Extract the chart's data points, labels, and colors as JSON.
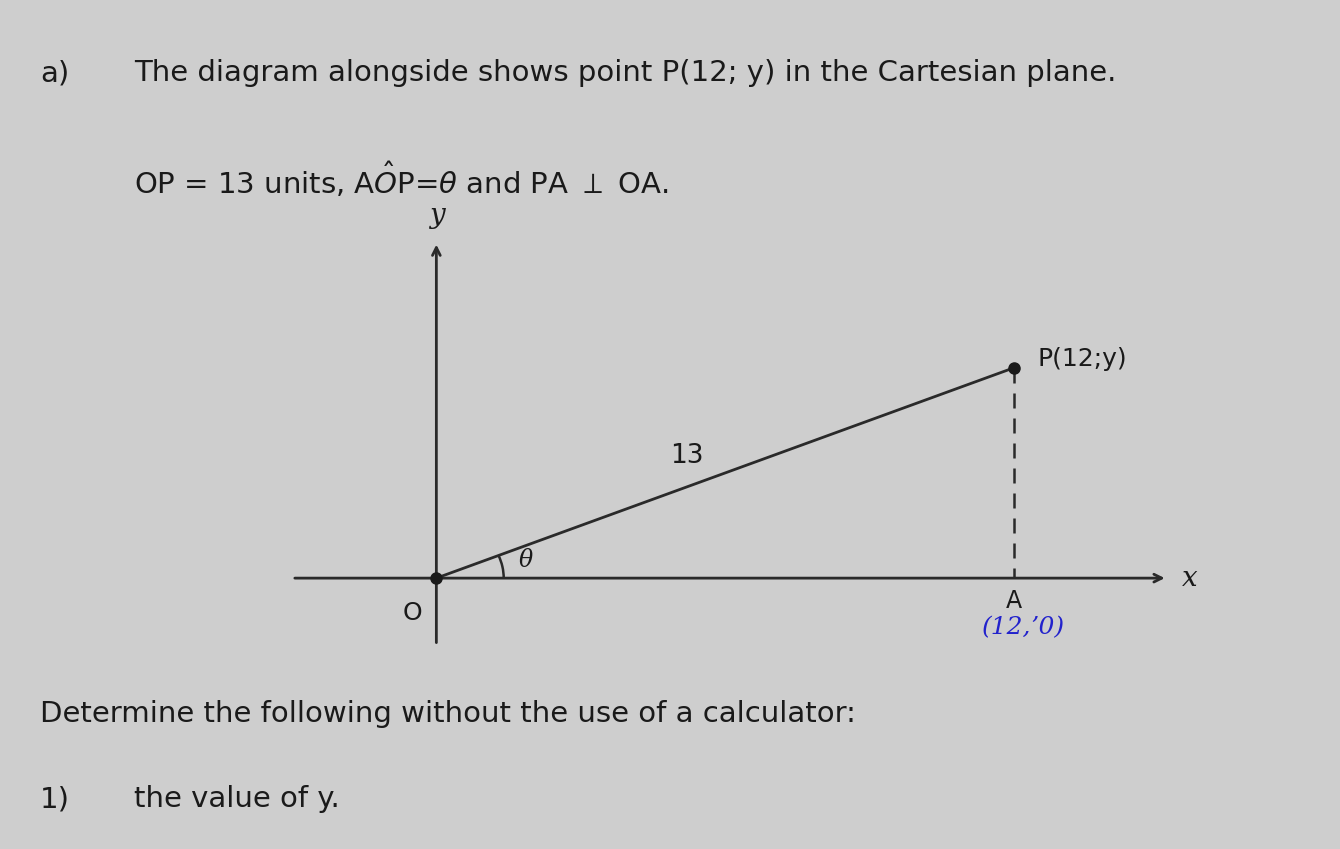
{
  "background_color": "#cecece",
  "title_a": "a)",
  "title_text": "The diagram alongside shows point P(12; y) in the Cartesian plane.",
  "subtitle_text": "OP = 13 units, A$\\hat{O}$P=$\\theta$ and PA $\\perp$ OA.",
  "determine_text": "Determine the following without the use of a calculator:",
  "item1_text": "1)",
  "item1_val": "the value of y.",
  "point_O": [
    0,
    0
  ],
  "point_P": [
    12,
    5
  ],
  "point_A": [
    12,
    0
  ],
  "label_P": "P(12;y)",
  "label_A": "A",
  "label_A2": "(12,ʼ0)",
  "label_O": "O",
  "label_x": "x",
  "label_y": "y",
  "label_13": "13",
  "label_theta": "θ",
  "line_color": "#2a2a2a",
  "dashed_color": "#2a2a2a",
  "dot_color": "#1a1a1a",
  "text_color": "#1a1a1a",
  "handwritten_color": "#2222cc",
  "axis_xlim": [
    -3.5,
    16
  ],
  "axis_ylim": [
    -2.0,
    8.5
  ]
}
